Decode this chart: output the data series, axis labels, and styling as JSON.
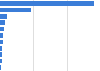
{
  "values": [
    404.2,
    134.7,
    28.5,
    20.1,
    16.3,
    13.8,
    11.2,
    9.5,
    8.1,
    6.7,
    5.2
  ],
  "bar_color": "#3b7dd8",
  "background_color": "#ffffff",
  "grid_color": "#d0d0d0",
  "bar_height": 0.72,
  "xlim": [
    0,
    430
  ],
  "grid_ticks": [
    143,
    286,
    430
  ]
}
